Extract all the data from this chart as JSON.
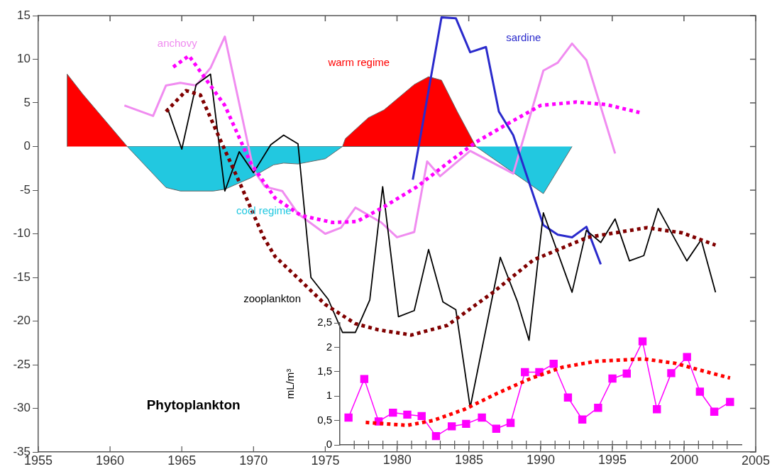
{
  "chart_data": [
    {
      "type": "line",
      "xlim": [
        1955,
        2005
      ],
      "ylim": [
        -35,
        15
      ],
      "xticks": [
        1955,
        1960,
        1965,
        1970,
        1975,
        {
          "value": 1980,
          "label": null
        },
        {
          "value": 1985,
          "label": null
        },
        {
          "value": 1990,
          "label": null
        },
        {
          "value": 1995,
          "label": null
        },
        {
          "value": 2000,
          "label": null
        },
        2005
      ],
      "yticks": [
        -35,
        -30,
        -25,
        -20,
        -15,
        -10,
        -5,
        0,
        5,
        10,
        15
      ],
      "marker": "none",
      "series": [
        {
          "name": "warm regime",
          "type": "area",
          "color": "#ff0000",
          "x": [
            1957,
            1957.01,
            1958.1,
            1961.2,
            1976.2,
            1976.4,
            1978,
            1979.1,
            1981.2,
            1982.2,
            1983.1,
            1984.2,
            1985.5
          ],
          "values": [
            0,
            8.3,
            6.0,
            0,
            0,
            0.9,
            3.3,
            4.2,
            7.1,
            8.0,
            7.6,
            4.0,
            0
          ]
        },
        {
          "name": "cool regime",
          "type": "area",
          "color": "#22c8e0",
          "x": [
            1961.2,
            1963.9,
            1964.9,
            1967.2,
            1968,
            1969.8,
            1971.4,
            1972.1,
            1973.1,
            1975,
            1976.2,
            1985.5,
            1988.2,
            1990.2,
            1992.2
          ],
          "values": [
            0,
            -4.7,
            -5.1,
            -5.1,
            -4.9,
            -3.6,
            -2.1,
            -1.9,
            -2.0,
            -1.4,
            0,
            0,
            -3.1,
            -5.4,
            0
          ]
        },
        {
          "name": "anchovy",
          "color": "#f08cf0",
          "x": [
            1961,
            1963,
            1963.9,
            1964.9,
            1966,
            1967,
            1968,
            1970,
            1970.8,
            1972,
            1973.1,
            1975,
            1976.1,
            1977.1,
            1978.9,
            1980,
            1981.2,
            1982.1,
            1983,
            1985.1,
            1988.1,
            1990.2,
            1991.2,
            1992.2,
            1993.2,
            1995.2
          ],
          "values": [
            4.7,
            3.5,
            7.0,
            7.3,
            7.0,
            9.0,
            12.6,
            -2.7,
            -4.6,
            -5.1,
            -7.7,
            -10.0,
            -9.3,
            -7.0,
            -8.7,
            -10.4,
            -9.8,
            -1.7,
            -3.4,
            -0.5,
            -3.1,
            8.7,
            9.6,
            11.8,
            9.9,
            -0.8
          ]
        },
        {
          "name": "sardine",
          "color": "#2a2acc",
          "x": [
            1981.1,
            1983.1,
            1984.1,
            1985.1,
            1986.2,
            1987.1,
            1988.1,
            1990.2,
            1991.2,
            1992.2,
            1993.2,
            1994.2
          ],
          "values": [
            -3.8,
            14.8,
            14.7,
            10.8,
            11.4,
            4.0,
            1.3,
            -9.0,
            -10.1,
            -10.4,
            -9.2,
            -13.5
          ]
        },
        {
          "name": "zooplankton",
          "color": "#000000",
          "x": [
            1964,
            1965,
            1966,
            1967,
            1968,
            1969,
            1970,
            1971.2,
            1972.1,
            1973.1,
            1974,
            1975.2,
            1976.2,
            1977.1,
            1978.1,
            1979,
            1980.1,
            1981.2,
            1982.2,
            1983.2,
            1984.1,
            1985.1,
            1987.2,
            1988.4,
            1989.2,
            1990.2,
            1992.2,
            1993.2,
            1994.2,
            1995.2,
            1996.2,
            1997.2,
            1998.2,
            2000.2,
            2001.2,
            2002.2
          ],
          "values": [
            4.4,
            -0.3,
            7.1,
            8.3,
            -5.1,
            -0.6,
            -3.0,
            0.2,
            1.3,
            0.3,
            -15.0,
            -17.5,
            -21.3,
            -21.3,
            -17.6,
            -4.6,
            -19.5,
            -18.8,
            -11.8,
            -17.8,
            -18.7,
            -29.9,
            -12.7,
            -17.8,
            -22.2,
            -7.6,
            -16.7,
            -9.6,
            -11.0,
            -8.3,
            -13.1,
            -12.5,
            -7.1,
            -13.1,
            -10.7,
            -16.7
          ]
        },
        {
          "color": "#ff00ff",
          "line_style": "dotted",
          "x": [
            1964.4,
            1965.5,
            1968,
            1969.8,
            1971.5,
            1973.3,
            1975.5,
            1977.2,
            1979.1,
            1981.4,
            1983.6,
            1985.5,
            1987.6,
            1990,
            1992.5,
            1994.6,
            1996.9
          ],
          "values": [
            9.1,
            10.4,
            4.7,
            -1.9,
            -5.9,
            -7.9,
            -8.7,
            -8.6,
            -6.9,
            -4.6,
            -1.8,
            0.5,
            2.5,
            4.7,
            5.1,
            4.8,
            3.9
          ]
        },
        {
          "color": "#800000",
          "line_style": "dotted",
          "x": [
            1963.9,
            1965.3,
            1966.3,
            1967.7,
            1969.1,
            1970.7,
            1971.5,
            1973.3,
            1975,
            1977.1,
            1978.7,
            1981,
            1983.5,
            1986.7,
            1989.5,
            1993.3,
            1997.4,
            1999.9,
            2002.2
          ],
          "values": [
            4.0,
            6.4,
            5.9,
            0.7,
            -4.4,
            -10.4,
            -12.6,
            -15.4,
            -18.1,
            -20.3,
            -21.0,
            -21.6,
            -20.5,
            -16.7,
            -13.0,
            -10.4,
            -9.3,
            -9.9,
            -11.3
          ]
        }
      ]
    },
    {
      "type": "line",
      "xlim": [
        1976,
        2004
      ],
      "ylim": [
        0,
        2.5
      ],
      "xticks": [
        {
          "value": 1977,
          "label": null
        },
        {
          "value": 1978,
          "label": null
        },
        {
          "value": 1979,
          "label": null
        },
        1980,
        {
          "value": 1981,
          "label": null
        },
        {
          "value": 1982,
          "label": null
        },
        {
          "value": 1983,
          "label": null
        },
        {
          "value": 1984,
          "label": null
        },
        1985,
        {
          "value": 1986,
          "label": null
        },
        {
          "value": 1987,
          "label": null
        },
        {
          "value": 1988,
          "label": null
        },
        {
          "value": 1989,
          "label": null
        },
        1990,
        {
          "value": 1991,
          "label": null
        },
        {
          "value": 1992,
          "label": null
        },
        {
          "value": 1993,
          "label": null
        },
        {
          "value": 1994,
          "label": null
        },
        1995,
        {
          "value": 1996,
          "label": null
        },
        {
          "value": 1997,
          "label": null
        },
        {
          "value": 1998,
          "label": null
        },
        {
          "value": 1999,
          "label": null
        },
        2000,
        {
          "value": 2001,
          "label": null
        },
        {
          "value": 2002,
          "label": null
        },
        {
          "value": 2003,
          "label": null
        }
      ],
      "yticks": [
        0,
        {
          "value": 0.5,
          "label": "0,5"
        },
        1,
        {
          "value": 1.5,
          "label": "1,5"
        },
        2,
        {
          "value": 2.5,
          "label": "2,5"
        }
      ],
      "ylabel": "mL/m³",
      "annotations": [
        "Phytoplankton"
      ],
      "series": [
        {
          "color": "#ff00ff",
          "marker": "square",
          "x": [
            1976.6,
            1977.7,
            1978.7,
            1979.7,
            1980.7,
            1981.7,
            1982.7,
            1983.8,
            1984.8,
            1985.9,
            1986.9,
            1987.9,
            1988.9,
            1989.9,
            1990.9,
            1991.9,
            1992.9,
            1994,
            1995,
            1996,
            1997.1,
            1998.1,
            1999.1,
            2000.2,
            2001.1,
            2002.1,
            2003.2
          ],
          "values": [
            0.56,
            1.35,
            0.48,
            0.66,
            0.62,
            0.59,
            0.18,
            0.38,
            0.43,
            0.56,
            0.33,
            0.45,
            1.49,
            1.49,
            1.66,
            0.97,
            0.52,
            0.76,
            1.36,
            1.46,
            2.12,
            0.73,
            1.47,
            1.8,
            1.09,
            0.68,
            0.88
          ]
        },
        {
          "color": "#ff0000",
          "marker": "none",
          "line_style": "dotted",
          "x": [
            1977.8,
            1980.7,
            1982.5,
            1984.7,
            1987,
            1989.3,
            1991.5,
            1993.8,
            1997.2,
            1999.4,
            2001,
            2003.2
          ],
          "values": [
            0.46,
            0.4,
            0.5,
            0.73,
            1.06,
            1.36,
            1.59,
            1.71,
            1.76,
            1.67,
            1.54,
            1.37
          ]
        }
      ]
    }
  ]
}
